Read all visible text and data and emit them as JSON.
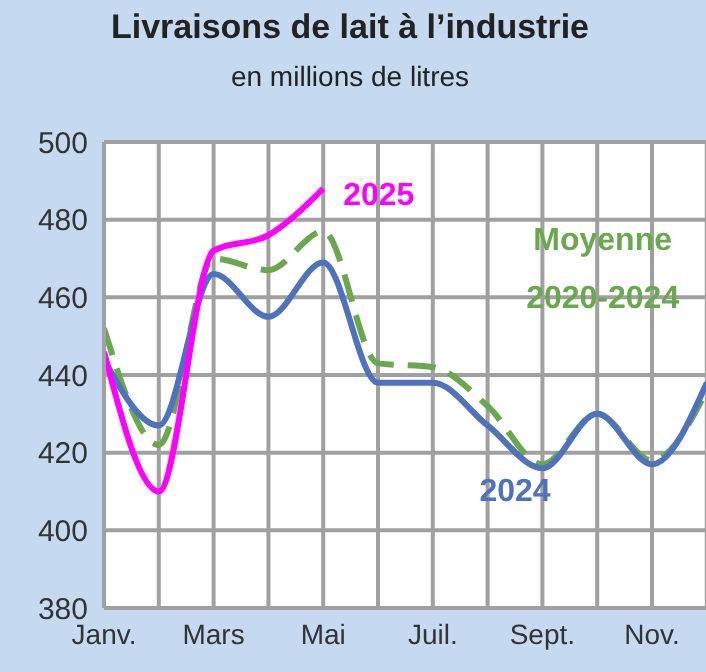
{
  "chart_data": {
    "type": "line",
    "title": "Livraisons de lait à l’industrie",
    "subtitle": "en millions de litres",
    "categories": [
      "Janv.",
      null,
      "Mars",
      null,
      "Mai",
      null,
      "Juil.",
      null,
      "Sept.",
      null,
      "Nov.",
      null
    ],
    "series": [
      {
        "name": "Moyenne 2020-2024",
        "color": "#6aa84f",
        "line_style": "dashed",
        "values": [
          452,
          422,
          470,
          467,
          477,
          443,
          442,
          432,
          417,
          430,
          418,
          436
        ]
      },
      {
        "name": "2024",
        "color": "#4f72be",
        "line_style": "solid",
        "values": [
          444,
          427,
          466,
          455,
          469,
          438,
          438,
          427,
          416,
          430,
          417,
          438
        ]
      },
      {
        "name": "2025",
        "color": "#ff00ff",
        "line_style": "solid",
        "values": [
          446,
          410,
          472,
          476,
          488,
          null,
          null,
          null,
          null,
          null,
          null,
          null
        ]
      }
    ],
    "ylim": [
      380,
      500
    ],
    "yticks": [
      380,
      400,
      420,
      440,
      460,
      480,
      500
    ],
    "grid": true,
    "legend": false,
    "marker": "none"
  }
}
